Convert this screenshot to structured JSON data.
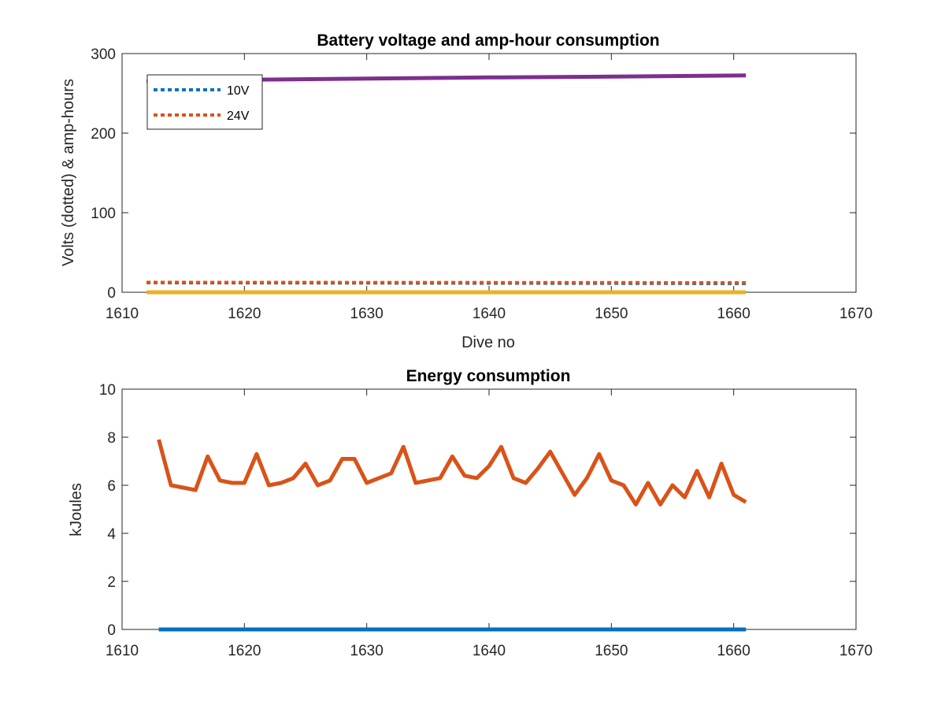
{
  "chart_data": [
    {
      "type": "line",
      "title": "Battery voltage and amp-hour consumption",
      "xlabel": "Dive no",
      "ylabel": "Volts (dotted) & amp-hours",
      "xlim": [
        1610,
        1670
      ],
      "ylim": [
        0,
        300
      ],
      "xticks": [
        1610,
        1620,
        1630,
        1640,
        1650,
        1660,
        1670
      ],
      "yticks": [
        0,
        100,
        200,
        300
      ],
      "xtick_labels": [
        "1610",
        "1620",
        "1630",
        "1640",
        "1650",
        "1660",
        "1670"
      ],
      "ytick_labels": [
        "0",
        "100",
        "200",
        "300"
      ],
      "grid": false,
      "legend_position": "top-left",
      "series": [
        {
          "name": "10V",
          "color": "#0072BD",
          "style": "dotted",
          "x": [
            1612,
            1661
          ],
          "values": [
            12,
            11
          ]
        },
        {
          "name": "24V",
          "color": "#D95319",
          "style": "dotted",
          "x": [
            1612,
            1661
          ],
          "values": [
            12.5,
            12
          ]
        },
        {
          "color": "#7E2F8E",
          "style": "solid",
          "x": [
            1612,
            1620,
            1630,
            1640,
            1650,
            1661
          ],
          "values": [
            265,
            267,
            268.5,
            270,
            271,
            272.5
          ]
        },
        {
          "color": "#EDB120",
          "style": "solid",
          "x": [
            1612,
            1661
          ],
          "values": [
            0,
            0
          ]
        }
      ]
    },
    {
      "type": "line",
      "title": "Energy consumption",
      "xlabel": "",
      "ylabel": "kJoules",
      "xlim": [
        1610,
        1670
      ],
      "ylim": [
        0,
        10
      ],
      "xticks": [
        1610,
        1620,
        1630,
        1640,
        1650,
        1660,
        1670
      ],
      "yticks": [
        0,
        2,
        4,
        6,
        8,
        10
      ],
      "xtick_labels": [
        "1610",
        "1620",
        "1630",
        "1640",
        "1650",
        "1660",
        "1670"
      ],
      "ytick_labels": [
        "0",
        "2",
        "4",
        "6",
        "8",
        "10"
      ],
      "grid": false,
      "series": [
        {
          "color": "#0072BD",
          "style": "solid",
          "x": [
            1613,
            1661
          ],
          "values": [
            0,
            0
          ]
        },
        {
          "color": "#D95319",
          "style": "solid",
          "x": [
            1613,
            1614,
            1615,
            1616,
            1617,
            1618,
            1619,
            1620,
            1621,
            1622,
            1623,
            1624,
            1625,
            1626,
            1627,
            1628,
            1629,
            1630,
            1631,
            1632,
            1633,
            1634,
            1635,
            1636,
            1637,
            1638,
            1639,
            1640,
            1641,
            1642,
            1643,
            1644,
            1645,
            1646,
            1647,
            1648,
            1649,
            1650,
            1651,
            1652,
            1653,
            1654,
            1655,
            1656,
            1657,
            1658,
            1659,
            1660,
            1661
          ],
          "values": [
            7.9,
            6.0,
            5.9,
            5.8,
            7.2,
            6.2,
            6.1,
            6.1,
            7.3,
            6.0,
            6.1,
            6.3,
            6.9,
            6.0,
            6.2,
            7.1,
            7.1,
            6.1,
            6.3,
            6.5,
            7.6,
            6.1,
            6.2,
            6.3,
            7.2,
            6.4,
            6.3,
            6.8,
            7.6,
            6.3,
            6.1,
            6.7,
            7.4,
            6.5,
            5.6,
            6.3,
            7.3,
            6.2,
            6.0,
            5.2,
            6.1,
            5.2,
            6.0,
            5.5,
            6.6,
            5.5,
            6.9,
            5.6,
            5.3
          ]
        }
      ]
    }
  ]
}
